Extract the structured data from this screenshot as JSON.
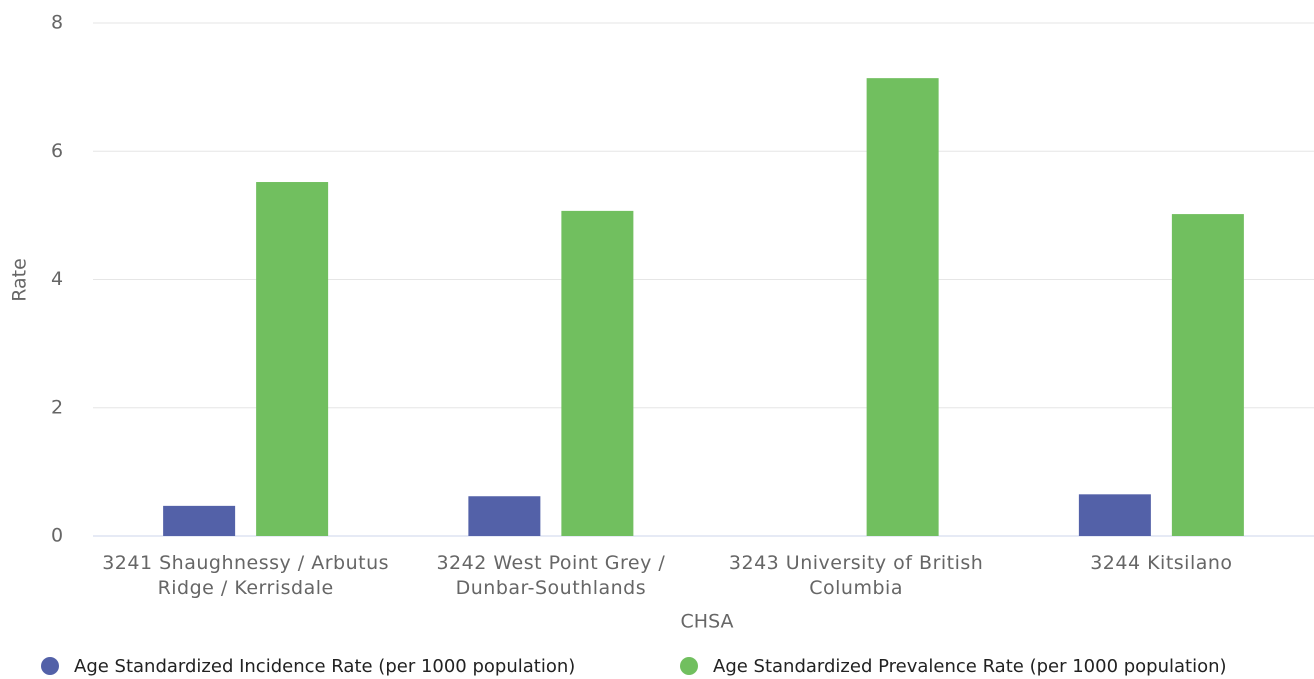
{
  "chart_data": {
    "type": "bar",
    "categories": [
      "3241 Shaughnessy / Arbutus Ridge / Kerrisdale",
      "3242 West Point Grey / Dunbar-Southlands",
      "3243 University of British Columbia",
      "3244 Kitsilano"
    ],
    "series": [
      {
        "name": "Age Standardized Incidence Rate (per 1000 population)",
        "color": "#5361a8",
        "values": [
          0.47,
          0.62,
          null,
          0.65
        ]
      },
      {
        "name": "Age Standardized Prevalence Rate (per 1000 population)",
        "color": "#71bf5f",
        "values": [
          5.52,
          5.07,
          7.14,
          5.02
        ]
      }
    ],
    "xlabel": "CHSA",
    "ylabel": "Rate",
    "ylim": [
      0,
      8
    ],
    "yticks": [
      0,
      2,
      4,
      6,
      8
    ],
    "grid": true,
    "legend": "bottom"
  }
}
